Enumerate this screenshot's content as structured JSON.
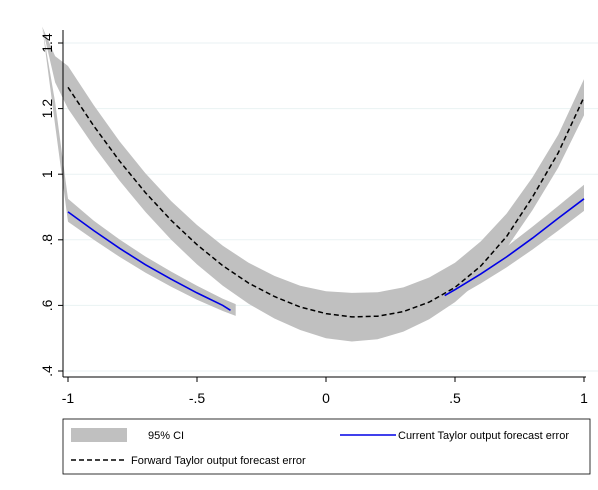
{
  "chart_data": {
    "type": "line",
    "title": "",
    "xlabel": "",
    "ylabel": "",
    "xlim": [
      -1.05,
      1.0
    ],
    "ylim": [
      0.4,
      1.45
    ],
    "xticks": [
      -1,
      -0.5,
      0,
      0.5,
      1
    ],
    "xtick_labels": [
      "-1",
      "-.5",
      "0",
      ".5",
      "1"
    ],
    "yticks": [
      0.4,
      0.6,
      0.8,
      1.0,
      1.2,
      1.4
    ],
    "ytick_labels": [
      ".4",
      ".6",
      ".8",
      "1",
      "1.2",
      "1.4"
    ],
    "grid": "horizontal",
    "legend_position": "bottom",
    "series": [
      {
        "name": "Current Taylor output forecast error",
        "style": "solid",
        "color": "#0000e6",
        "segments": [
          {
            "x": [
              -1.0,
              -0.9,
              -0.8,
              -0.7,
              -0.6,
              -0.5,
              -0.4,
              -0.37
            ],
            "y": [
              0.885,
              0.828,
              0.774,
              0.724,
              0.68,
              0.638,
              0.6,
              0.585
            ]
          },
          {
            "x": [
              0.46,
              0.5,
              0.6,
              0.7,
              0.8,
              0.9,
              1.0
            ],
            "y": [
              0.63,
              0.648,
              0.696,
              0.748,
              0.805,
              0.866,
              0.925
            ]
          }
        ],
        "ci": [
          {
            "x": [
              -1.1,
              -1.05,
              -1.0,
              -0.9,
              -0.8,
              -0.7,
              -0.6,
              -0.5,
              -0.4,
              -0.35
            ],
            "lower": [
              1.45,
              1.15,
              0.855,
              0.8,
              0.748,
              0.7,
              0.657,
              0.617,
              0.583,
              0.568
            ],
            "upper": [
              1.45,
              1.22,
              0.925,
              0.858,
              0.801,
              0.749,
              0.703,
              0.66,
              0.62,
              0.604
            ]
          },
          {
            "x": [
              0.44,
              0.5,
              0.6,
              0.7,
              0.8,
              0.9,
              1.0
            ],
            "lower": [
              0.6,
              0.622,
              0.667,
              0.716,
              0.77,
              0.828,
              0.888
            ],
            "upper": [
              0.66,
              0.677,
              0.724,
              0.779,
              0.84,
              0.903,
              0.968
            ]
          }
        ]
      },
      {
        "name": "Forward Taylor output forecast error",
        "style": "dashed",
        "color": "#000000",
        "x": [
          -1.0,
          -0.9,
          -0.8,
          -0.7,
          -0.6,
          -0.5,
          -0.4,
          -0.3,
          -0.2,
          -0.1,
          0.0,
          0.1,
          0.2,
          0.3,
          0.4,
          0.5,
          0.6,
          0.7,
          0.8,
          0.9,
          1.0
        ],
        "y": [
          1.265,
          1.147,
          1.04,
          0.944,
          0.859,
          0.785,
          0.721,
          0.668,
          0.627,
          0.595,
          0.575,
          0.565,
          0.567,
          0.581,
          0.61,
          0.655,
          0.72,
          0.81,
          0.93,
          1.065,
          1.235
        ],
        "ci": {
          "x": [
            -1.1,
            -1.05,
            -1.0,
            -0.9,
            -0.8,
            -0.7,
            -0.6,
            -0.5,
            -0.4,
            -0.3,
            -0.2,
            -0.1,
            0.0,
            0.1,
            0.2,
            0.3,
            0.4,
            0.5,
            0.6,
            0.7,
            0.8,
            0.9,
            1.0
          ],
          "lower": [
            1.45,
            1.28,
            1.2,
            1.085,
            0.98,
            0.885,
            0.8,
            0.725,
            0.66,
            0.605,
            0.56,
            0.525,
            0.5,
            0.49,
            0.497,
            0.52,
            0.558,
            0.61,
            0.68,
            0.775,
            0.89,
            1.02,
            1.18
          ],
          "upper": [
            1.45,
            1.36,
            1.33,
            1.21,
            1.1,
            1.003,
            0.918,
            0.845,
            0.782,
            0.73,
            0.69,
            0.66,
            0.643,
            0.638,
            0.64,
            0.655,
            0.685,
            0.73,
            0.795,
            0.88,
            0.99,
            1.12,
            1.29
          ]
        }
      }
    ],
    "legend": {
      "ci_label": "95% CI",
      "current_label": "Current Taylor output forecast error",
      "forward_label": "Forward Taylor output forecast error"
    },
    "colors": {
      "ci_fill": "#c0c0c0",
      "grid": "#eaf2f3",
      "axis": "#000000"
    }
  }
}
